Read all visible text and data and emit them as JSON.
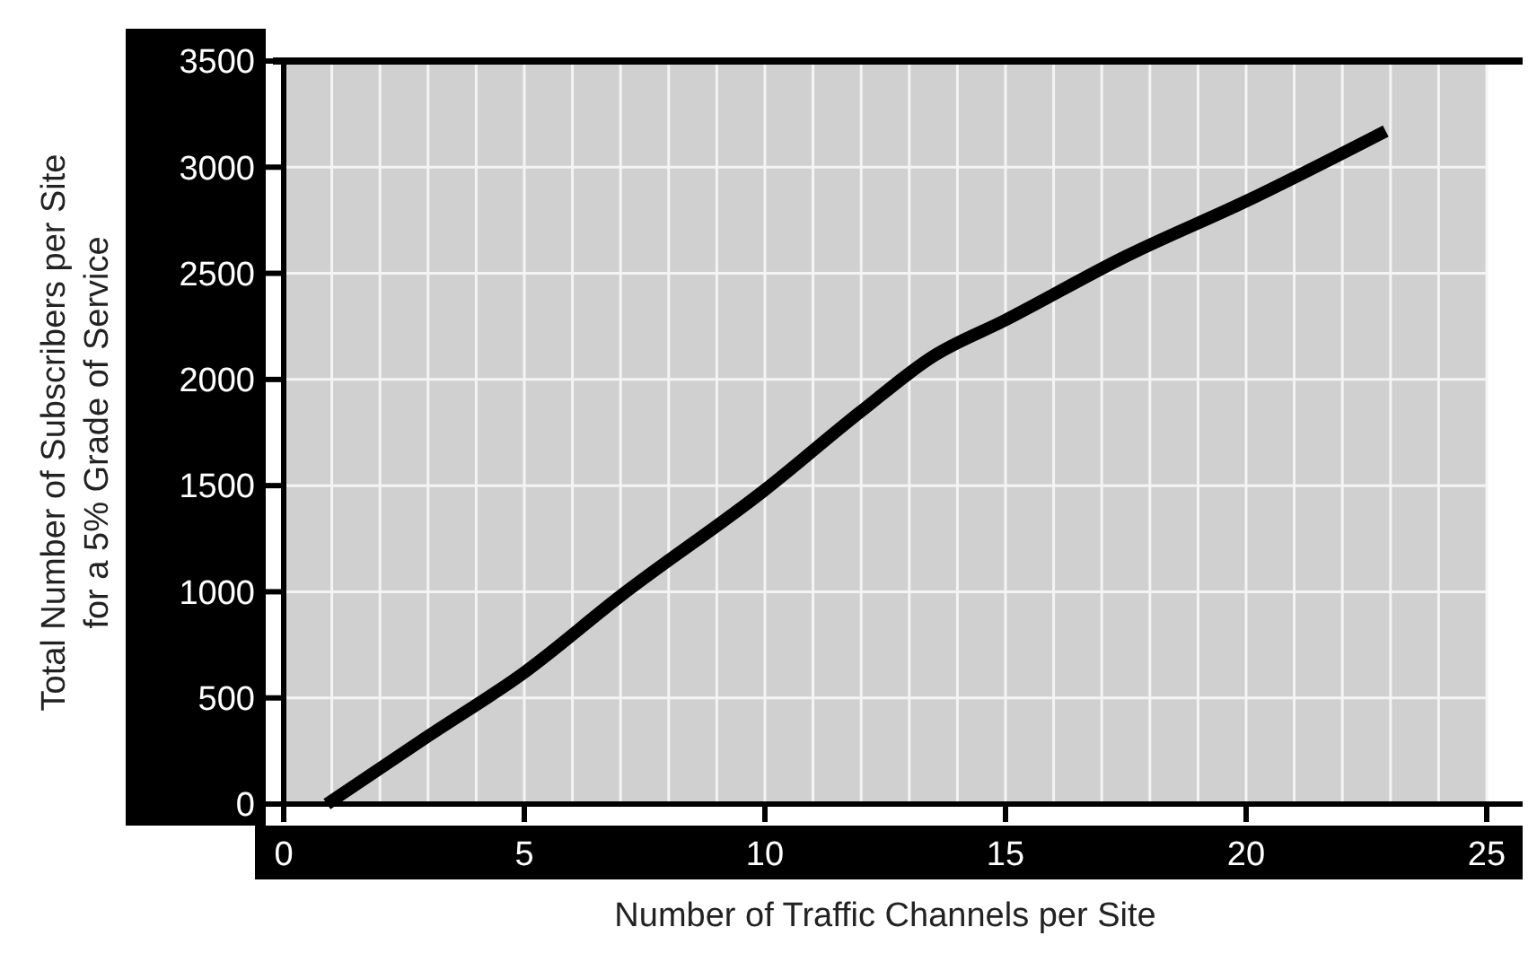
{
  "chart_data": {
    "type": "line",
    "xlabel": "Number of Traffic Channels per Site",
    "ylabel": "Total Number of Subscribers per Site\nfor a 5% Grade of Service",
    "xlim": [
      0,
      25
    ],
    "xticks": [
      0,
      5,
      10,
      15,
      20,
      25
    ],
    "ylim": [
      0,
      3500
    ],
    "yticks": [
      0,
      500,
      1000,
      1500,
      2000,
      2500,
      3000,
      3500
    ],
    "grid": true,
    "series": [
      {
        "color": "#000000",
        "x": [
          0.9,
          3,
          5,
          7,
          10,
          12,
          13.5,
          15,
          17.5,
          20,
          22.9
        ],
        "values": [
          0,
          320,
          620,
          980,
          1480,
          1850,
          2110,
          2280,
          2580,
          2840,
          3170
        ]
      }
    ]
  }
}
